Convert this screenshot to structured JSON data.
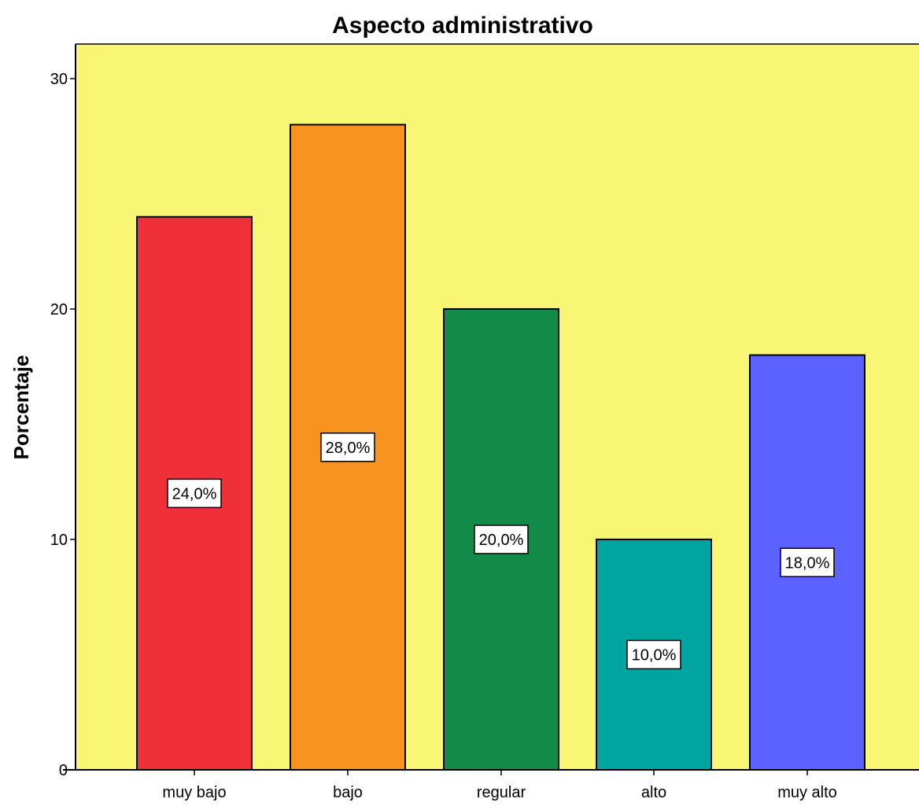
{
  "chart_data": {
    "type": "bar",
    "title": "Aspecto administrativo",
    "xlabel": "",
    "ylabel": "Porcentaje",
    "ylim": [
      0,
      31.5
    ],
    "yticks": [
      "0",
      "10",
      "20",
      "30"
    ],
    "ytick_values": [
      0,
      10,
      20,
      30
    ],
    "grid": false,
    "categories": [
      "muy bajo",
      "bajo",
      "regular",
      "alto",
      "muy alto"
    ],
    "values": [
      24,
      28,
      20,
      10,
      18
    ],
    "data_labels": [
      "24,0%",
      "28,0%",
      "20,0%",
      "10,0%",
      "18,0%"
    ],
    "colors": [
      "#ef3038",
      "#f7931e",
      "#118b47",
      "#00a5a2",
      "#5c62ff"
    ],
    "plot_background": "#f9f675"
  }
}
